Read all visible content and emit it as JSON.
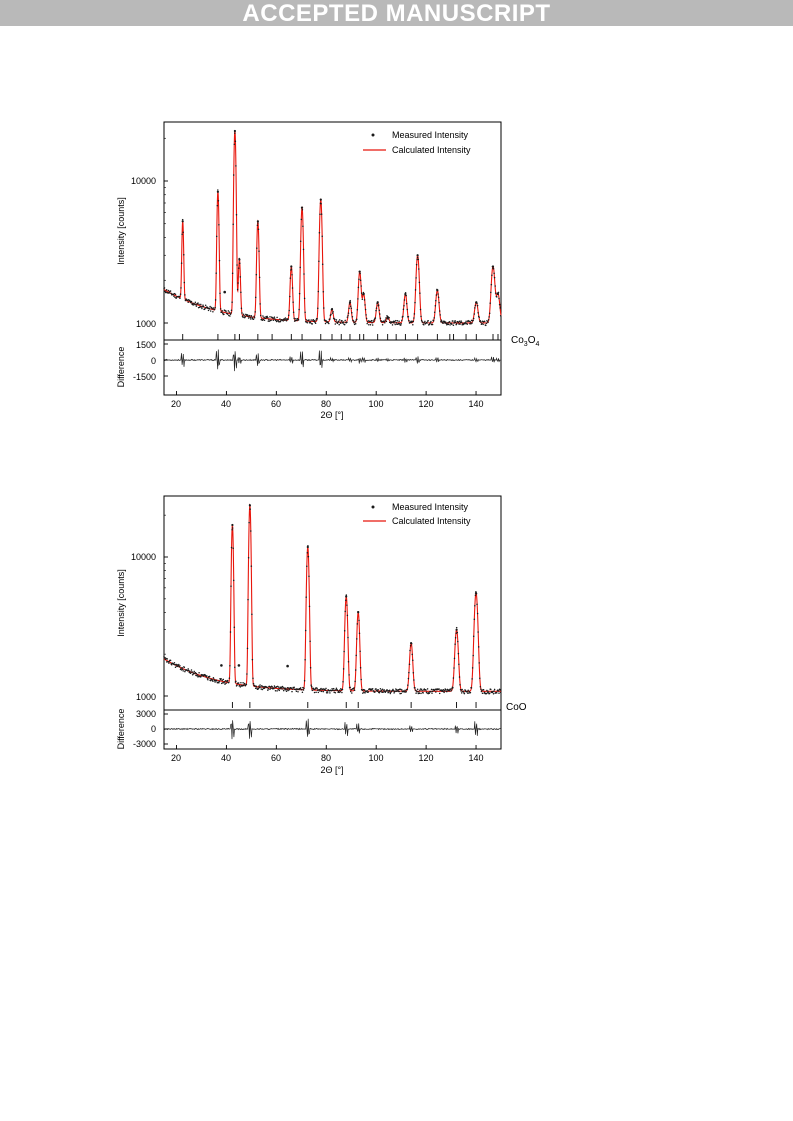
{
  "banner": {
    "text": "ACCEPTED MANUSCRIPT"
  },
  "colors": {
    "measured": "#1a1a1a",
    "calculated": "#e8160c",
    "banner_bg": "#b9b9b9"
  },
  "chart_data": [
    {
      "type": "scatter",
      "title": "",
      "phase_label_main": "Co",
      "phase_label_sub1": "3",
      "phase_label_mid": "O",
      "phase_label_sub2": "4",
      "xlabel": "2Θ [°]",
      "ylabel": "Intensity [counts]",
      "diff_ylabel": "Difference",
      "xlim": [
        15,
        150
      ],
      "ylim": [
        900,
        25000
      ],
      "yscale": "log",
      "diff_ylim": [
        -1500,
        1500
      ],
      "x_ticks": [
        "20",
        "40",
        "60",
        "80",
        "100",
        "120",
        "140"
      ],
      "y_ticks": [
        "1000",
        "10000"
      ],
      "diff_ticks": [
        "1500",
        "0",
        "-1500"
      ],
      "legend_position": "top-right",
      "series": [
        {
          "name": "Measured Intensity",
          "style": "points"
        },
        {
          "name": "Calculated Intensity",
          "style": "line"
        }
      ],
      "background": {
        "start": 1720,
        "end": 1000,
        "decay": 18
      },
      "peaks": [
        {
          "x": 22.5,
          "intensity": 5200
        },
        {
          "x": 36.6,
          "intensity": 8400
        },
        {
          "x": 43.4,
          "intensity": 22500
        },
        {
          "x": 45.2,
          "intensity": 2800
        },
        {
          "x": 52.6,
          "intensity": 5200
        },
        {
          "x": 66.0,
          "intensity": 2500
        },
        {
          "x": 70.3,
          "intensity": 6500
        },
        {
          "x": 77.8,
          "intensity": 7400
        },
        {
          "x": 82.3,
          "intensity": 1250
        },
        {
          "x": 89.5,
          "intensity": 1400
        },
        {
          "x": 93.4,
          "intensity": 2300
        },
        {
          "x": 95.0,
          "intensity": 1600
        },
        {
          "x": 100.6,
          "intensity": 1400
        },
        {
          "x": 104.6,
          "intensity": 1100
        },
        {
          "x": 111.7,
          "intensity": 1600
        },
        {
          "x": 116.6,
          "intensity": 3000
        },
        {
          "x": 124.5,
          "intensity": 1700
        },
        {
          "x": 140.1,
          "intensity": 1400
        },
        {
          "x": 146.8,
          "intensity": 2500
        },
        {
          "x": 148.8,
          "intensity": 1600
        }
      ],
      "reflections": [
        22.5,
        36.6,
        43.4,
        45.2,
        52.6,
        58.3,
        66.0,
        70.3,
        77.8,
        82.3,
        86.0,
        89.5,
        93.4,
        95.0,
        100.6,
        104.6,
        108.0,
        111.7,
        116.6,
        124.5,
        129.5,
        131.0,
        136.0,
        140.1,
        146.8,
        148.8
      ],
      "impurity_points": [
        {
          "x": 39.3,
          "y": 1650
        }
      ]
    },
    {
      "type": "scatter",
      "title": "",
      "phase_label_main": "CoO",
      "phase_label_sub1": "",
      "phase_label_mid": "",
      "phase_label_sub2": "",
      "xlabel": "2Θ [°]",
      "ylabel": "Intensity [counts]",
      "diff_ylabel": "Difference",
      "xlim": [
        15,
        150
      ],
      "ylim": [
        900,
        25000
      ],
      "yscale": "log",
      "diff_ylim": [
        -3000,
        3000
      ],
      "x_ticks": [
        "20",
        "40",
        "60",
        "80",
        "100",
        "120",
        "140"
      ],
      "y_ticks": [
        "1000",
        "10000"
      ],
      "diff_ticks": [
        "3000",
        "0",
        "-3000"
      ],
      "legend_position": "top-right",
      "series": [
        {
          "name": "Measured Intensity",
          "style": "points"
        },
        {
          "name": "Calculated Intensity",
          "style": "line"
        }
      ],
      "background": {
        "start": 1850,
        "end": 1080,
        "decay": 17
      },
      "peaks": [
        {
          "x": 42.4,
          "intensity": 17000
        },
        {
          "x": 49.4,
          "intensity": 23500
        },
        {
          "x": 72.6,
          "intensity": 11800
        },
        {
          "x": 88.0,
          "intensity": 5200
        },
        {
          "x": 92.8,
          "intensity": 4000
        },
        {
          "x": 114.0,
          "intensity": 2400
        },
        {
          "x": 132.2,
          "intensity": 3000
        },
        {
          "x": 140.0,
          "intensity": 5500
        }
      ],
      "reflections": [
        42.4,
        49.4,
        72.6,
        88.0,
        92.8,
        114.0,
        132.2,
        140.0
      ],
      "impurity_points": [
        {
          "x": 38.0,
          "y": 1660
        },
        {
          "x": 45.0,
          "y": 1660
        },
        {
          "x": 64.5,
          "y": 1640
        }
      ]
    }
  ]
}
